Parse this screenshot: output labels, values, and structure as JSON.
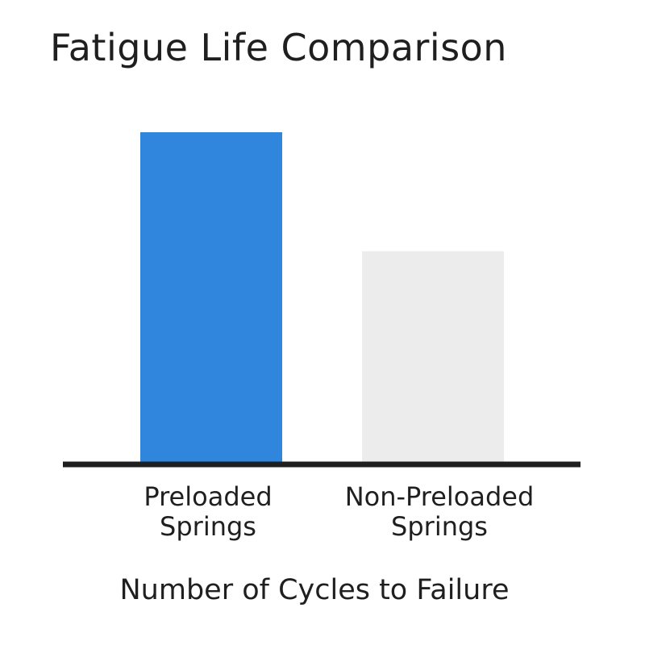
{
  "chart_data": {
    "type": "bar",
    "title": "Fatigue Life Comparison",
    "xlabel": "Number of Cycles to Failure",
    "ylabel": "",
    "categories": [
      [
        "Preloaded",
        "Springs"
      ],
      [
        "Non-Preloaded",
        "Springs"
      ]
    ],
    "values": [
      100,
      64
    ],
    "ylim": [
      0,
      100
    ],
    "grid": false,
    "colors": [
      "#2f86dc",
      "#ececec"
    ],
    "axis_color": "#1f1f1f"
  }
}
